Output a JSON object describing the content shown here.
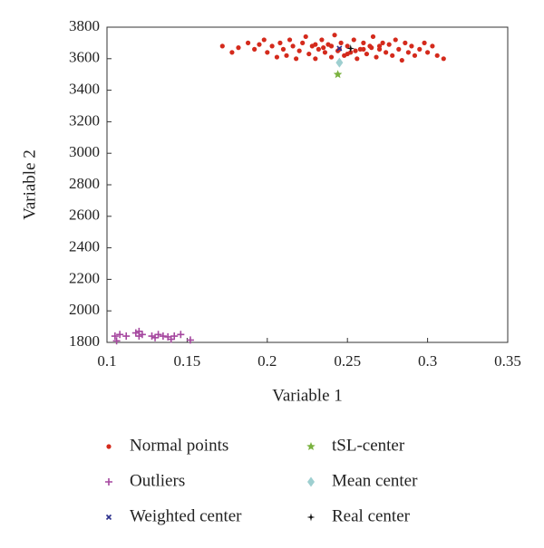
{
  "chart_data": {
    "type": "scatter",
    "xlabel": "Variable 1",
    "ylabel": "Variable 2",
    "xlim": [
      0.1,
      0.35
    ],
    "xticks": [
      0.1,
      0.15,
      0.2,
      0.25,
      0.3,
      0.35
    ],
    "ylim": [
      1800,
      3800
    ],
    "yticks": [
      1800,
      2000,
      2200,
      2400,
      2600,
      2800,
      3000,
      3200,
      3400,
      3600,
      3800
    ],
    "series": [
      {
        "name": "Normal points",
        "color": "#d42a1c",
        "marker": "circle",
        "x": [
          0.172,
          0.178,
          0.182,
          0.188,
          0.192,
          0.195,
          0.198,
          0.2,
          0.203,
          0.206,
          0.208,
          0.21,
          0.212,
          0.214,
          0.216,
          0.218,
          0.22,
          0.222,
          0.224,
          0.226,
          0.228,
          0.23,
          0.232,
          0.234,
          0.236,
          0.238,
          0.24,
          0.242,
          0.244,
          0.246,
          0.248,
          0.25,
          0.252,
          0.254,
          0.256,
          0.258,
          0.26,
          0.262,
          0.264,
          0.266,
          0.268,
          0.27,
          0.272,
          0.274,
          0.276,
          0.278,
          0.28,
          0.282,
          0.284,
          0.286,
          0.288,
          0.29,
          0.292,
          0.295,
          0.298,
          0.3,
          0.303,
          0.306,
          0.31,
          0.235,
          0.245,
          0.255,
          0.265,
          0.24,
          0.26,
          0.25,
          0.23,
          0.27
        ],
        "values": [
          3680,
          3640,
          3670,
          3700,
          3660,
          3690,
          3720,
          3640,
          3680,
          3610,
          3700,
          3660,
          3620,
          3720,
          3680,
          3600,
          3650,
          3700,
          3740,
          3630,
          3680,
          3600,
          3660,
          3720,
          3640,
          3690,
          3610,
          3750,
          3650,
          3700,
          3620,
          3680,
          3640,
          3720,
          3600,
          3660,
          3700,
          3630,
          3680,
          3740,
          3610,
          3660,
          3700,
          3640,
          3690,
          3620,
          3720,
          3660,
          3590,
          3700,
          3640,
          3680,
          3620,
          3660,
          3700,
          3640,
          3680,
          3620,
          3600,
          3670,
          3660,
          3650,
          3670,
          3680,
          3660,
          3630,
          3690,
          3680
        ]
      },
      {
        "name": "Outliers",
        "color": "#a5479f",
        "marker": "plus",
        "x": [
          0.105,
          0.108,
          0.112,
          0.118,
          0.12,
          0.122,
          0.128,
          0.13,
          0.132,
          0.135,
          0.14,
          0.142,
          0.146,
          0.152,
          0.106,
          0.12,
          0.138
        ],
        "values": [
          1840,
          1850,
          1840,
          1860,
          1840,
          1850,
          1840,
          1830,
          1850,
          1840,
          1820,
          1840,
          1850,
          1815,
          1810,
          1870,
          1835
        ]
      },
      {
        "name": "Weighted center",
        "color": "#2b2f8c",
        "marker": "x",
        "x": [
          0.245
        ],
        "values": [
          3665
        ]
      },
      {
        "name": "tSL-center",
        "color": "#7ab23f",
        "marker": "star",
        "x": [
          0.244
        ],
        "values": [
          3500
        ]
      },
      {
        "name": "Mean center",
        "color": "#9ecfd0",
        "marker": "diamond",
        "x": [
          0.245
        ],
        "values": [
          3575
        ]
      },
      {
        "name": "Real center",
        "color": "#111111",
        "marker": "star4",
        "x": [
          0.252
        ],
        "values": [
          3665
        ]
      }
    ]
  }
}
